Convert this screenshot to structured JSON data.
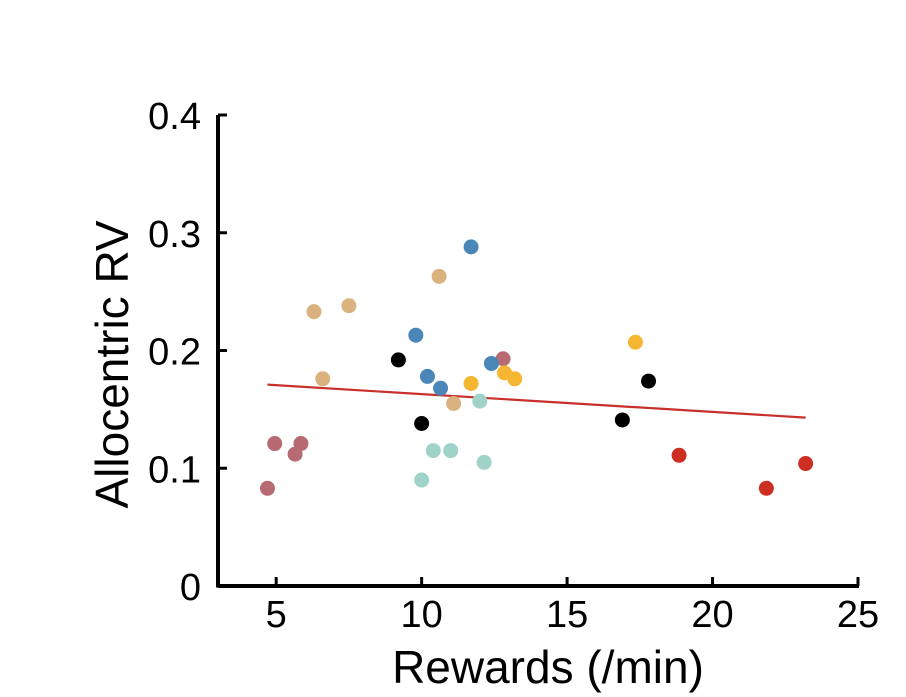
{
  "chart_data": {
    "type": "scatter",
    "title": "",
    "xlabel": "Rewards (/min)",
    "ylabel": "Allocentric RV",
    "xlim": [
      3,
      25
    ],
    "ylim": [
      0,
      0.4
    ],
    "xticks": [
      5,
      10,
      15,
      20,
      25
    ],
    "yticks": [
      0,
      0.1,
      0.2,
      0.3,
      0.4
    ],
    "xtick_labels": [
      "5",
      "10",
      "15",
      "20",
      "25"
    ],
    "ytick_labels": [
      "0",
      "0.1",
      "0.2",
      "0.3",
      "0.4"
    ],
    "grid": false,
    "legend": "none",
    "points": [
      {
        "x": 4.7,
        "y": 0.083,
        "color": "#b76a72"
      },
      {
        "x": 4.95,
        "y": 0.121,
        "color": "#b76a72"
      },
      {
        "x": 5.65,
        "y": 0.112,
        "color": "#b76a72"
      },
      {
        "x": 5.85,
        "y": 0.121,
        "color": "#b76a72"
      },
      {
        "x": 12.8,
        "y": 0.193,
        "color": "#b76a72"
      },
      {
        "x": 6.3,
        "y": 0.233,
        "color": "#d9b27f"
      },
      {
        "x": 6.6,
        "y": 0.176,
        "color": "#d9b27f"
      },
      {
        "x": 7.5,
        "y": 0.238,
        "color": "#d9b27f"
      },
      {
        "x": 10.6,
        "y": 0.263,
        "color": "#d9b27f"
      },
      {
        "x": 11.1,
        "y": 0.155,
        "color": "#d9b27f"
      },
      {
        "x": 9.2,
        "y": 0.192,
        "color": "#000000"
      },
      {
        "x": 10.0,
        "y": 0.138,
        "color": "#000000"
      },
      {
        "x": 16.9,
        "y": 0.141,
        "color": "#000000"
      },
      {
        "x": 17.8,
        "y": 0.174,
        "color": "#000000"
      },
      {
        "x": 9.8,
        "y": 0.213,
        "color": "#4b86b8"
      },
      {
        "x": 10.2,
        "y": 0.178,
        "color": "#4b86b8"
      },
      {
        "x": 10.65,
        "y": 0.168,
        "color": "#4b86b8"
      },
      {
        "x": 11.7,
        "y": 0.288,
        "color": "#4b86b8"
      },
      {
        "x": 12.4,
        "y": 0.189,
        "color": "#4b86b8"
      },
      {
        "x": 10.0,
        "y": 0.09,
        "color": "#9fd3c9"
      },
      {
        "x": 10.4,
        "y": 0.115,
        "color": "#9fd3c9"
      },
      {
        "x": 11.0,
        "y": 0.115,
        "color": "#9fd3c9"
      },
      {
        "x": 12.0,
        "y": 0.157,
        "color": "#9fd3c9"
      },
      {
        "x": 12.15,
        "y": 0.105,
        "color": "#9fd3c9"
      },
      {
        "x": 11.7,
        "y": 0.172,
        "color": "#f5b731"
      },
      {
        "x": 12.85,
        "y": 0.181,
        "color": "#f5b731"
      },
      {
        "x": 13.2,
        "y": 0.176,
        "color": "#f5b731"
      },
      {
        "x": 17.35,
        "y": 0.207,
        "color": "#f5b731"
      },
      {
        "x": 18.85,
        "y": 0.111,
        "color": "#cc2e22"
      },
      {
        "x": 21.85,
        "y": 0.083,
        "color": "#cc2e22"
      },
      {
        "x": 23.2,
        "y": 0.104,
        "color": "#cc2e22"
      }
    ],
    "fit_line": {
      "x": [
        4.7,
        23.2
      ],
      "y": [
        0.171,
        0.143
      ],
      "color": "#c9302c"
    }
  }
}
